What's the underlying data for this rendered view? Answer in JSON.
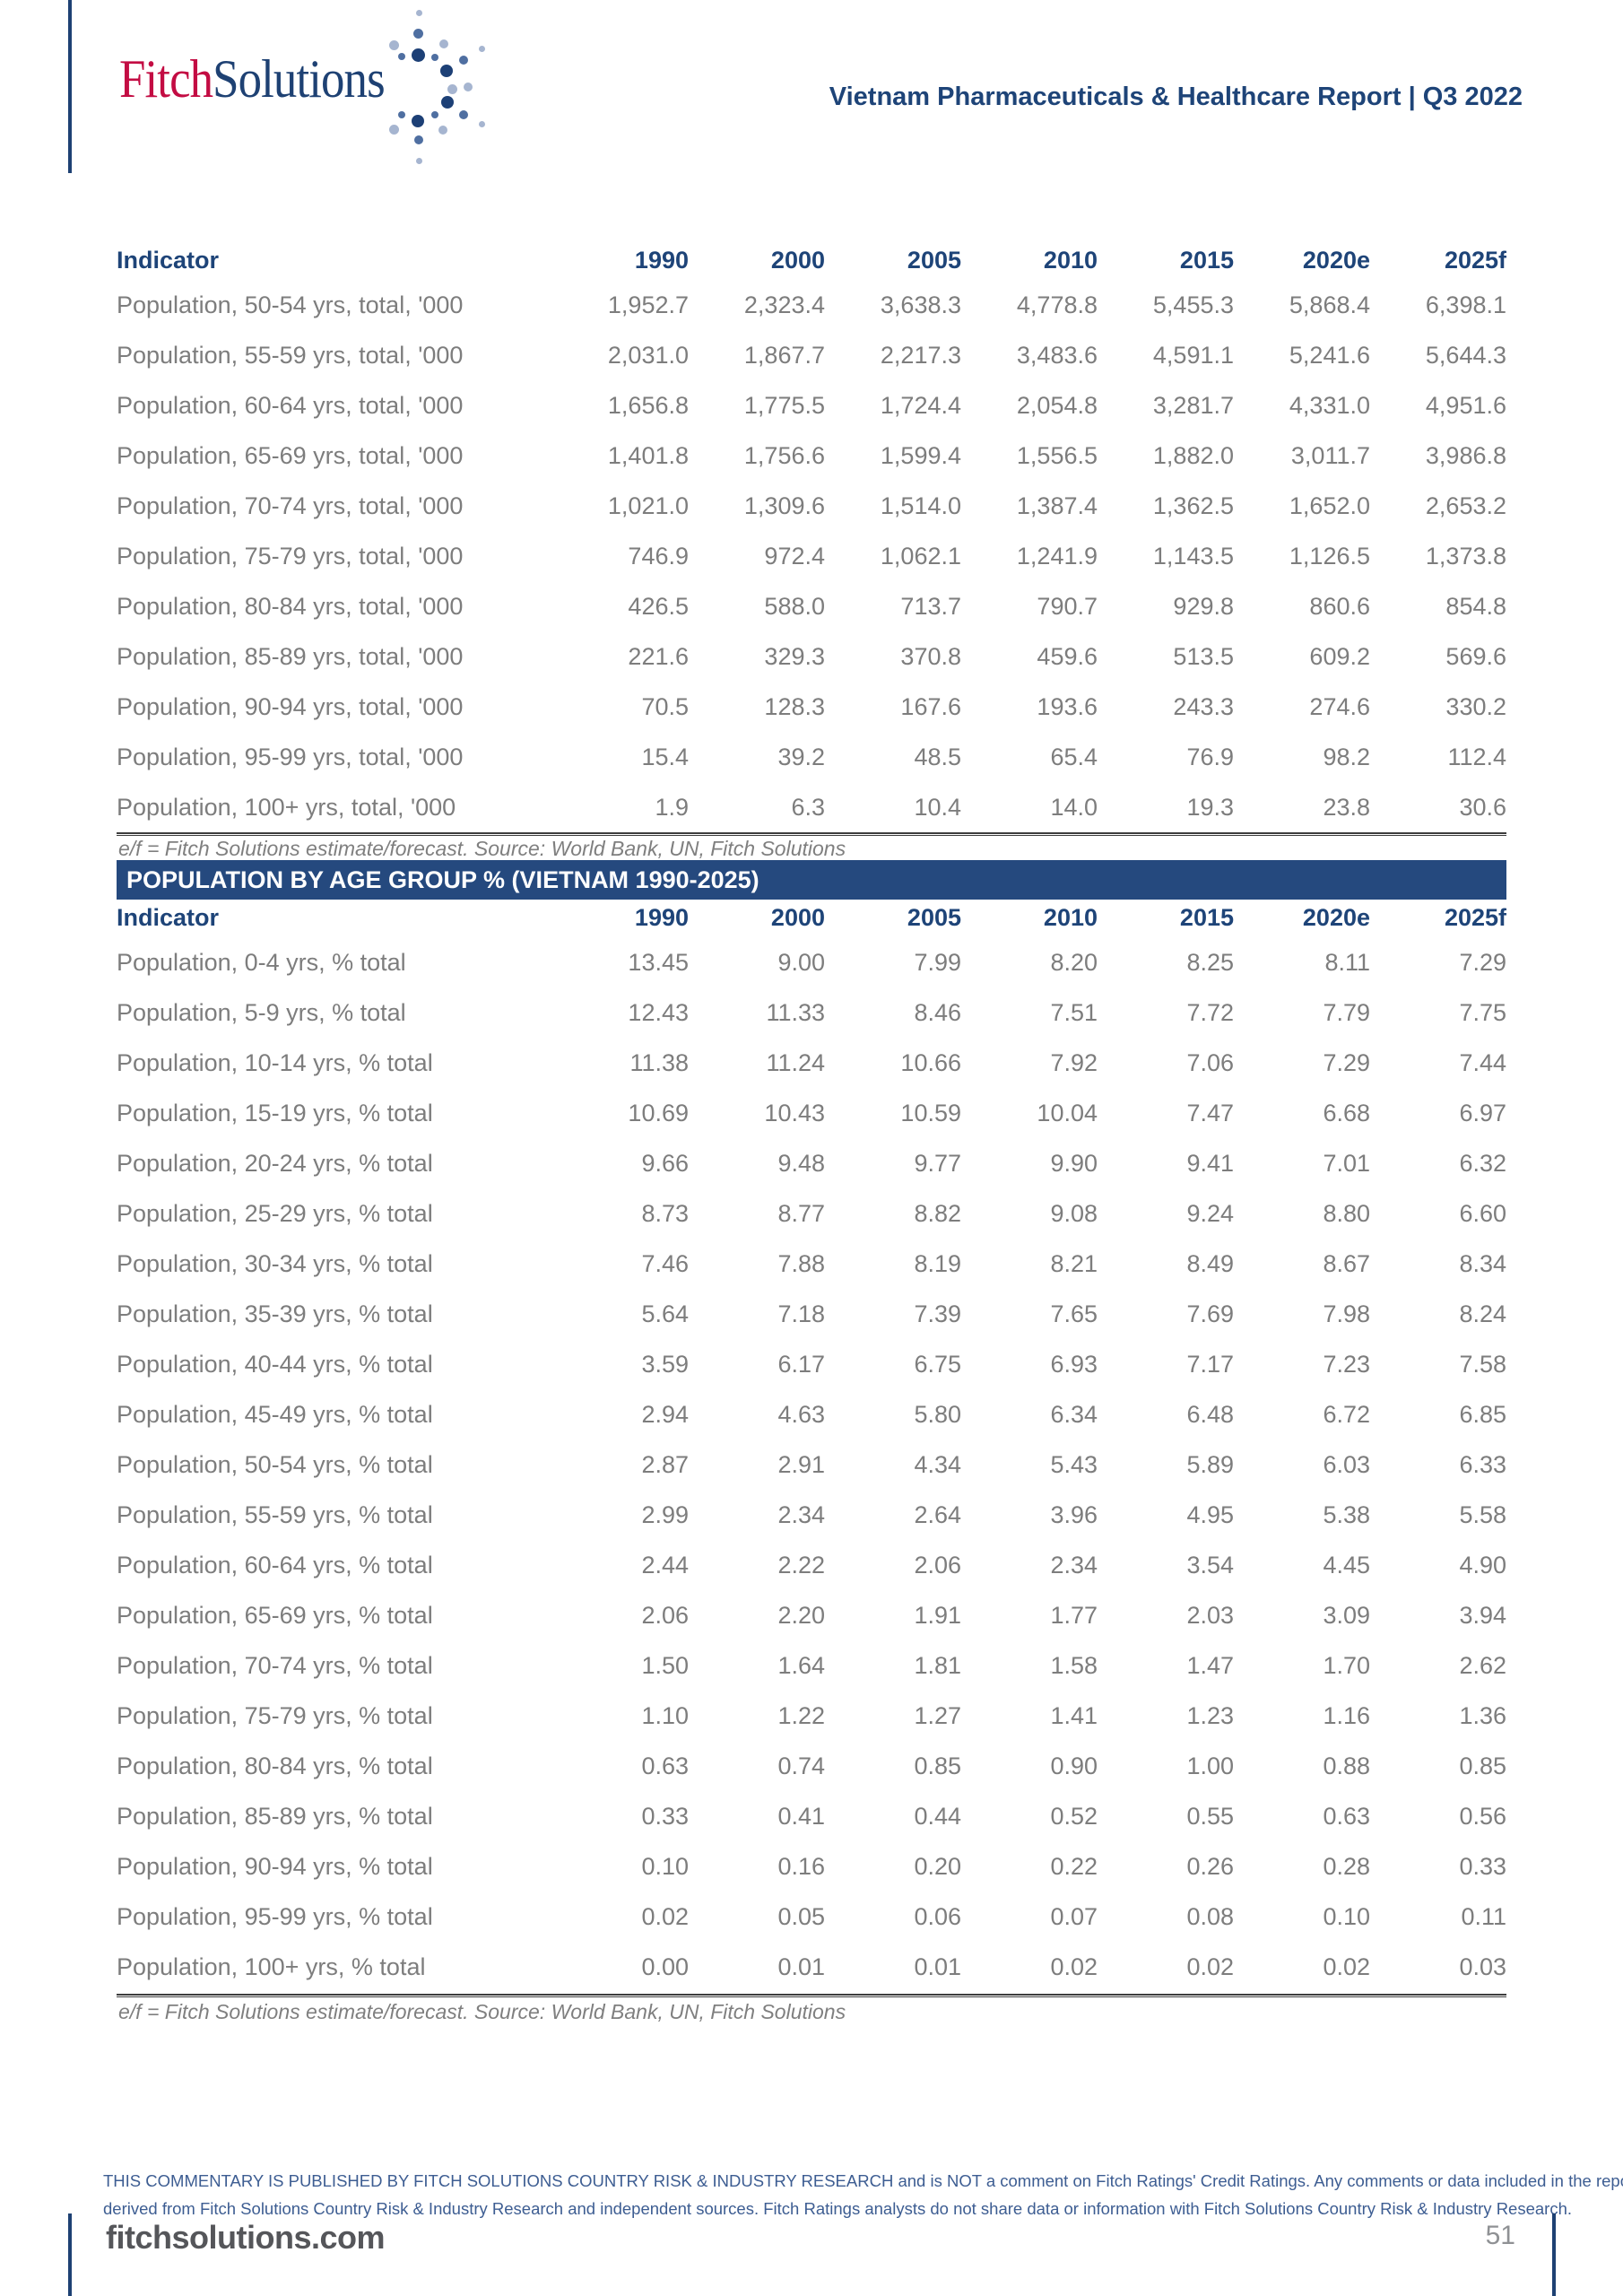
{
  "header": {
    "report_title": "Vietnam Pharmaceuticals & Healthcare Report | Q3 2022",
    "logo": {
      "part1": "Fitch",
      "part2": "Solutions"
    }
  },
  "banner": {
    "title": "POPULATION BY AGE GROUP % (VIETNAM 1990-2025)"
  },
  "tables": [
    {
      "indicator_label": "Indicator",
      "years": [
        "1990",
        "2000",
        "2005",
        "2010",
        "2015",
        "2020e",
        "2025f"
      ],
      "rows": [
        {
          "label": "Population, 50-54 yrs, total, '000",
          "values": [
            "1,952.7",
            "2,323.4",
            "3,638.3",
            "4,778.8",
            "5,455.3",
            "5,868.4",
            "6,398.1"
          ]
        },
        {
          "label": "Population, 55-59 yrs, total, '000",
          "values": [
            "2,031.0",
            "1,867.7",
            "2,217.3",
            "3,483.6",
            "4,591.1",
            "5,241.6",
            "5,644.3"
          ]
        },
        {
          "label": "Population, 60-64 yrs, total, '000",
          "values": [
            "1,656.8",
            "1,775.5",
            "1,724.4",
            "2,054.8",
            "3,281.7",
            "4,331.0",
            "4,951.6"
          ]
        },
        {
          "label": "Population, 65-69 yrs, total, '000",
          "values": [
            "1,401.8",
            "1,756.6",
            "1,599.4",
            "1,556.5",
            "1,882.0",
            "3,011.7",
            "3,986.8"
          ]
        },
        {
          "label": "Population, 70-74 yrs, total, '000",
          "values": [
            "1,021.0",
            "1,309.6",
            "1,514.0",
            "1,387.4",
            "1,362.5",
            "1,652.0",
            "2,653.2"
          ]
        },
        {
          "label": "Population, 75-79 yrs, total, '000",
          "values": [
            "746.9",
            "972.4",
            "1,062.1",
            "1,241.9",
            "1,143.5",
            "1,126.5",
            "1,373.8"
          ]
        },
        {
          "label": "Population, 80-84 yrs, total, '000",
          "values": [
            "426.5",
            "588.0",
            "713.7",
            "790.7",
            "929.8",
            "860.6",
            "854.8"
          ]
        },
        {
          "label": "Population, 85-89 yrs, total, '000",
          "values": [
            "221.6",
            "329.3",
            "370.8",
            "459.6",
            "513.5",
            "609.2",
            "569.6"
          ]
        },
        {
          "label": "Population, 90-94 yrs, total, '000",
          "values": [
            "70.5",
            "128.3",
            "167.6",
            "193.6",
            "243.3",
            "274.6",
            "330.2"
          ]
        },
        {
          "label": "Population, 95-99 yrs, total, '000",
          "values": [
            "15.4",
            "39.2",
            "48.5",
            "65.4",
            "76.9",
            "98.2",
            "112.4"
          ]
        },
        {
          "label": "Population, 100+ yrs, total, '000",
          "values": [
            "1.9",
            "6.3",
            "10.4",
            "14.0",
            "19.3",
            "23.8",
            "30.6"
          ]
        }
      ],
      "footnote": "e/f = Fitch Solutions estimate/forecast. Source: World Bank, UN, Fitch Solutions"
    },
    {
      "indicator_label": "Indicator",
      "years": [
        "1990",
        "2000",
        "2005",
        "2010",
        "2015",
        "2020e",
        "2025f"
      ],
      "rows": [
        {
          "label": "Population, 0-4 yrs, % total",
          "values": [
            "13.45",
            "9.00",
            "7.99",
            "8.20",
            "8.25",
            "8.11",
            "7.29"
          ]
        },
        {
          "label": "Population, 5-9 yrs, % total",
          "values": [
            "12.43",
            "11.33",
            "8.46",
            "7.51",
            "7.72",
            "7.79",
            "7.75"
          ]
        },
        {
          "label": "Population, 10-14 yrs, % total",
          "values": [
            "11.38",
            "11.24",
            "10.66",
            "7.92",
            "7.06",
            "7.29",
            "7.44"
          ]
        },
        {
          "label": "Population, 15-19 yrs, % total",
          "values": [
            "10.69",
            "10.43",
            "10.59",
            "10.04",
            "7.47",
            "6.68",
            "6.97"
          ]
        },
        {
          "label": "Population, 20-24 yrs, % total",
          "values": [
            "9.66",
            "9.48",
            "9.77",
            "9.90",
            "9.41",
            "7.01",
            "6.32"
          ]
        },
        {
          "label": "Population, 25-29 yrs, % total",
          "values": [
            "8.73",
            "8.77",
            "8.82",
            "9.08",
            "9.24",
            "8.80",
            "6.60"
          ]
        },
        {
          "label": "Population, 30-34 yrs, % total",
          "values": [
            "7.46",
            "7.88",
            "8.19",
            "8.21",
            "8.49",
            "8.67",
            "8.34"
          ]
        },
        {
          "label": "Population, 35-39 yrs, % total",
          "values": [
            "5.64",
            "7.18",
            "7.39",
            "7.65",
            "7.69",
            "7.98",
            "8.24"
          ]
        },
        {
          "label": "Population, 40-44 yrs, % total",
          "values": [
            "3.59",
            "6.17",
            "6.75",
            "6.93",
            "7.17",
            "7.23",
            "7.58"
          ]
        },
        {
          "label": "Population, 45-49 yrs, % total",
          "values": [
            "2.94",
            "4.63",
            "5.80",
            "6.34",
            "6.48",
            "6.72",
            "6.85"
          ]
        },
        {
          "label": "Population, 50-54 yrs, % total",
          "values": [
            "2.87",
            "2.91",
            "4.34",
            "5.43",
            "5.89",
            "6.03",
            "6.33"
          ]
        },
        {
          "label": "Population, 55-59 yrs, % total",
          "values": [
            "2.99",
            "2.34",
            "2.64",
            "3.96",
            "4.95",
            "5.38",
            "5.58"
          ]
        },
        {
          "label": "Population, 60-64 yrs, % total",
          "values": [
            "2.44",
            "2.22",
            "2.06",
            "2.34",
            "3.54",
            "4.45",
            "4.90"
          ]
        },
        {
          "label": "Population, 65-69 yrs, % total",
          "values": [
            "2.06",
            "2.20",
            "1.91",
            "1.77",
            "2.03",
            "3.09",
            "3.94"
          ]
        },
        {
          "label": "Population, 70-74 yrs, % total",
          "values": [
            "1.50",
            "1.64",
            "1.81",
            "1.58",
            "1.47",
            "1.70",
            "2.62"
          ]
        },
        {
          "label": "Population, 75-79 yrs, % total",
          "values": [
            "1.10",
            "1.22",
            "1.27",
            "1.41",
            "1.23",
            "1.16",
            "1.36"
          ]
        },
        {
          "label": "Population, 80-84 yrs, % total",
          "values": [
            "0.63",
            "0.74",
            "0.85",
            "0.90",
            "1.00",
            "0.88",
            "0.85"
          ]
        },
        {
          "label": "Population, 85-89 yrs, % total",
          "values": [
            "0.33",
            "0.41",
            "0.44",
            "0.52",
            "0.55",
            "0.63",
            "0.56"
          ]
        },
        {
          "label": "Population, 90-94 yrs, % total",
          "values": [
            "0.10",
            "0.16",
            "0.20",
            "0.22",
            "0.26",
            "0.28",
            "0.33"
          ]
        },
        {
          "label": "Population, 95-99 yrs, % total",
          "values": [
            "0.02",
            "0.05",
            "0.06",
            "0.07",
            "0.08",
            "0.10",
            "0.11"
          ]
        },
        {
          "label": "Population, 100+ yrs, % total",
          "values": [
            "0.00",
            "0.01",
            "0.01",
            "0.02",
            "0.02",
            "0.02",
            "0.03"
          ]
        }
      ],
      "footnote": "e/f = Fitch Solutions estimate/forecast. Source: World Bank, UN, Fitch Solutions"
    }
  ],
  "footer": {
    "disclaimer_line1": "THIS COMMENTARY IS PUBLISHED BY FITCH SOLUTIONS COUNTRY RISK & INDUSTRY RESEARCH and is NOT a comment on Fitch Ratings' Credit Ratings. Any comments or data included in the report are solely",
    "disclaimer_line2": "derived from Fitch Solutions Country Risk & Industry Research and independent sources. Fitch Ratings analysts do not share data or information with Fitch Solutions Country Risk & Industry Research.",
    "website": "fitchsolutions.com",
    "page_number": "51"
  },
  "colors": {
    "navy": "#1e4478",
    "banner": "#25497e",
    "logo-red": "#c30c43",
    "logo-navy": "#1e4173",
    "text-gray": "#7d7d7d",
    "footnote-gray": "#7f7f7f",
    "disclaimer-blue": "#3d5d92",
    "footer-gray": "#55565a",
    "rule": "#3d3d3d"
  }
}
